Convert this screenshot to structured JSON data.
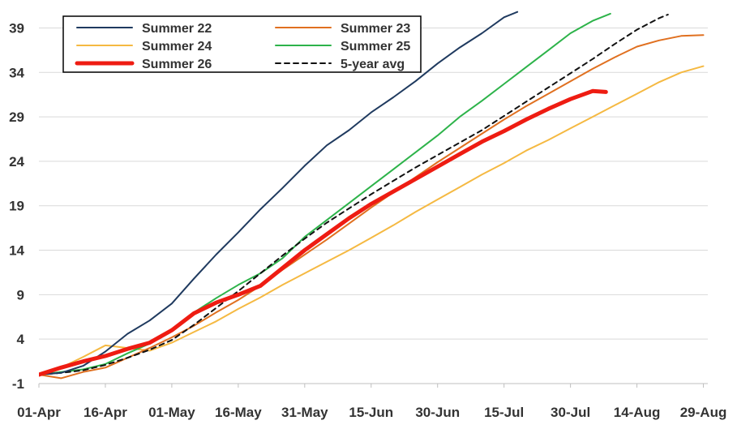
{
  "chart_data": {
    "type": "line",
    "title": "",
    "xlabel": "",
    "ylabel": "",
    "x_tick_labels": [
      "01-Apr",
      "16-Apr",
      "01-May",
      "16-May",
      "31-May",
      "15-Jun",
      "30-Jun",
      "15-Jul",
      "30-Jul",
      "14-Aug",
      "29-Aug"
    ],
    "y_ticks": [
      -1,
      4,
      9,
      14,
      19,
      24,
      29,
      34,
      39
    ],
    "ylim": [
      -1,
      40.5
    ],
    "xlim_days": [
      0,
      151
    ],
    "grid": "horizontal",
    "legend": {
      "placement": "top-left",
      "columns": 2
    },
    "series": [
      {
        "name": "Summer 22",
        "color": "#1f3a5f",
        "style": "solid",
        "width": "thin",
        "x_days": [
          0,
          5,
          10,
          15,
          20,
          25,
          30,
          35,
          40,
          45,
          50,
          55,
          60,
          65,
          70,
          75,
          80,
          85,
          90,
          95,
          100,
          105,
          108
        ],
        "values": [
          0,
          0.2,
          1.0,
          2.6,
          4.6,
          6.1,
          8.0,
          10.8,
          13.5,
          16.0,
          18.6,
          21.0,
          23.5,
          25.8,
          27.5,
          29.5,
          31.2,
          33.0,
          35.0,
          36.8,
          38.4,
          40.2,
          40.8
        ]
      },
      {
        "name": "Summer 23",
        "color": "#e07020",
        "style": "solid",
        "width": "thin",
        "x_days": [
          0,
          5,
          10,
          15,
          20,
          25,
          30,
          35,
          40,
          45,
          50,
          55,
          60,
          65,
          70,
          75,
          80,
          85,
          90,
          95,
          100,
          105,
          110,
          115,
          120,
          125,
          130,
          135,
          140,
          145,
          150
        ],
        "values": [
          0,
          -0.4,
          0.3,
          0.8,
          1.9,
          3.0,
          4.2,
          5.5,
          7.0,
          8.4,
          10.0,
          11.8,
          13.5,
          15.2,
          17.0,
          18.8,
          20.5,
          22.2,
          23.9,
          25.5,
          27.1,
          28.7,
          30.2,
          31.6,
          33.0,
          34.4,
          35.7,
          36.9,
          37.6,
          38.1,
          38.2
        ]
      },
      {
        "name": "Summer 24",
        "color": "#f5b942",
        "style": "solid",
        "width": "thin",
        "x_days": [
          0,
          5,
          10,
          15,
          20,
          25,
          30,
          35,
          40,
          45,
          50,
          55,
          60,
          65,
          70,
          75,
          80,
          85,
          90,
          95,
          100,
          105,
          110,
          115,
          120,
          125,
          130,
          135,
          140,
          145,
          150
        ],
        "values": [
          0,
          0.8,
          2.0,
          3.3,
          3.0,
          2.7,
          3.6,
          4.8,
          6.0,
          7.4,
          8.7,
          10.1,
          11.4,
          12.7,
          14.0,
          15.4,
          16.8,
          18.3,
          19.7,
          21.1,
          22.5,
          23.8,
          25.2,
          26.4,
          27.7,
          29.0,
          30.3,
          31.6,
          32.9,
          34.0,
          34.7
        ]
      },
      {
        "name": "Summer 25",
        "color": "#2db34a",
        "style": "solid",
        "width": "thin",
        "x_days": [
          0,
          5,
          10,
          15,
          20,
          25,
          30,
          35,
          40,
          45,
          50,
          55,
          60,
          65,
          70,
          75,
          80,
          85,
          90,
          95,
          100,
          105,
          110,
          115,
          120,
          125,
          129
        ],
        "values": [
          0,
          0.3,
          0.6,
          1.2,
          2.4,
          3.5,
          4.9,
          7.0,
          8.6,
          10.1,
          11.4,
          13.1,
          15.5,
          17.4,
          19.3,
          21.2,
          23.1,
          25.0,
          26.9,
          29.0,
          30.8,
          32.7,
          34.6,
          36.5,
          38.4,
          39.8,
          40.6
        ]
      },
      {
        "name": "Summer 26",
        "color": "#ee1c12",
        "style": "solid",
        "width": "thick",
        "x_days": [
          0,
          5,
          10,
          15,
          20,
          25,
          30,
          35,
          40,
          45,
          50,
          55,
          60,
          65,
          70,
          75,
          80,
          85,
          90,
          95,
          100,
          105,
          110,
          115,
          120,
          125,
          128
        ],
        "values": [
          0,
          0.8,
          1.5,
          2.1,
          2.9,
          3.6,
          5.0,
          6.9,
          8.1,
          9.0,
          10.0,
          12.0,
          14.0,
          15.8,
          17.6,
          19.2,
          20.6,
          22.0,
          23.4,
          24.8,
          26.2,
          27.4,
          28.7,
          29.9,
          31.0,
          31.9,
          31.8
        ]
      },
      {
        "name": "5-year avg",
        "color": "#111111",
        "style": "dashed",
        "width": "thin",
        "x_days": [
          0,
          5,
          10,
          15,
          20,
          25,
          30,
          35,
          40,
          45,
          50,
          55,
          60,
          65,
          70,
          75,
          80,
          85,
          90,
          95,
          100,
          105,
          110,
          115,
          120,
          125,
          130,
          135,
          140,
          142
        ],
        "values": [
          0,
          0.2,
          0.5,
          1.1,
          1.9,
          2.8,
          3.9,
          5.6,
          7.5,
          9.4,
          11.4,
          13.4,
          15.3,
          17.1,
          18.7,
          20.3,
          21.8,
          23.3,
          24.7,
          26.1,
          27.5,
          29.1,
          30.7,
          32.3,
          33.9,
          35.5,
          37.2,
          38.8,
          40.1,
          40.5
        ]
      }
    ]
  }
}
